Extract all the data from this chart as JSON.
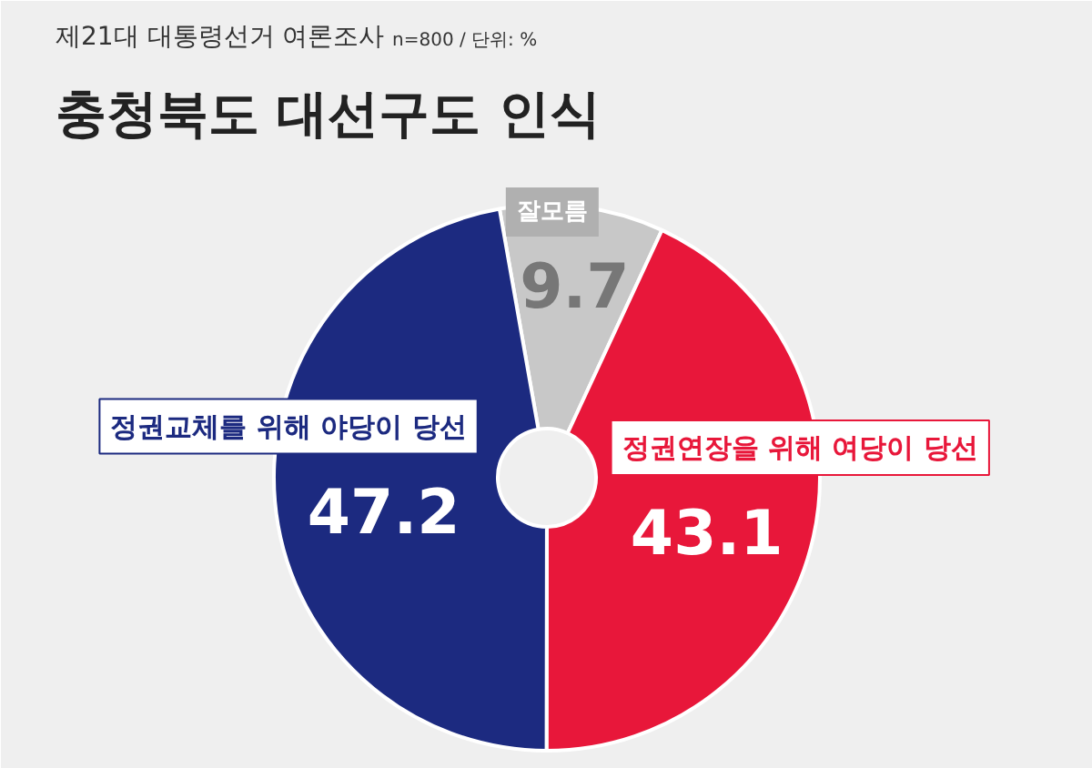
{
  "chart_data": {
    "type": "donut",
    "title": "충청북도 대선구도 인식",
    "subtitle": "제21대 대통령선거 여론조사",
    "annotations": [
      "n=800 / 단위: %"
    ],
    "categories": [
      "잘모름",
      "정권연장을 위해 여당이 당선",
      "정권교체를 위해 야당이 당선"
    ],
    "values": [
      9.7,
      43.1,
      47.2
    ],
    "colors": [
      "#c8c8c8",
      "#e8173a",
      "#1c2a80"
    ],
    "data_labels": true
  }
}
